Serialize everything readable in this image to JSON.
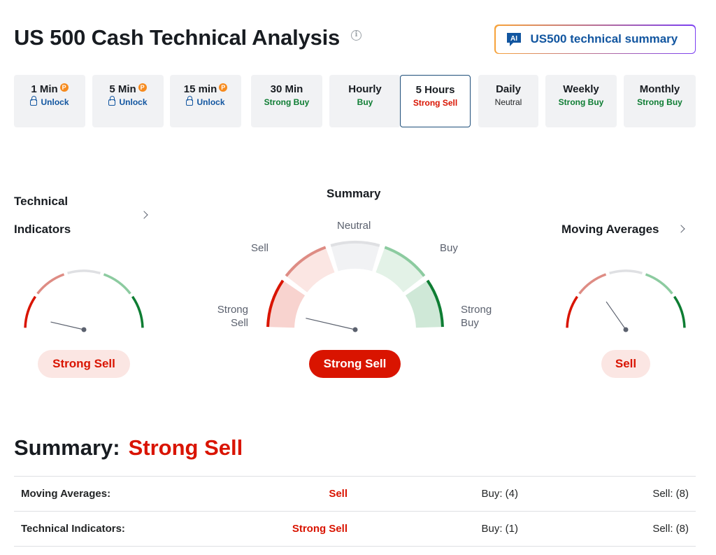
{
  "header": {
    "title": "US 500 Cash Technical Analysis",
    "ai_button_label": "US500 technical summary",
    "ai_icon_text": "AI"
  },
  "timeframes": [
    {
      "label": "1 Min",
      "pro": true,
      "signal": "Unlock",
      "locked": true
    },
    {
      "label": "5 Min",
      "pro": true,
      "signal": "Unlock",
      "locked": true
    },
    {
      "label": "15 min",
      "pro": true,
      "signal": "Unlock",
      "locked": true
    },
    {
      "label": "30 Min",
      "pro": false,
      "signal": "Strong Buy",
      "locked": false
    },
    {
      "label": "Hourly",
      "pro": false,
      "signal": "Buy",
      "locked": false
    },
    {
      "label": "5 Hours",
      "pro": false,
      "signal": "Strong Sell",
      "locked": false,
      "active": true
    },
    {
      "label": "Daily",
      "pro": false,
      "signal": "Neutral",
      "locked": false
    },
    {
      "label": "Weekly",
      "pro": false,
      "signal": "Strong Buy",
      "locked": false
    },
    {
      "label": "Monthly",
      "pro": false,
      "signal": "Strong Buy",
      "locked": false
    }
  ],
  "pro_badge": "P",
  "technical_indicators": {
    "title_line1": "Technical",
    "title_line2": "Indicators",
    "result": "Strong Sell",
    "needle_level": "strong-sell"
  },
  "summary_gauge": {
    "title": "Summary",
    "labels": {
      "strong_sell_1": "Strong",
      "strong_sell_2": "Sell",
      "sell": "Sell",
      "neutral": "Neutral",
      "buy": "Buy",
      "strong_buy_1": "Strong",
      "strong_buy_2": "Buy"
    },
    "result": "Strong Sell",
    "needle_level": "strong-sell"
  },
  "moving_averages": {
    "title": "Moving Averages",
    "result": "Sell",
    "needle_level": "sell"
  },
  "summary": {
    "heading": "Summary:",
    "value": "Strong Sell",
    "rows": [
      {
        "label": "Moving Averages:",
        "signal": "Sell",
        "buy": "Buy: (4)",
        "sell": "Sell: (8)"
      },
      {
        "label": "Technical Indicators:",
        "signal": "Strong Sell",
        "buy": "Buy: (1)",
        "sell": "Sell: (8)"
      }
    ]
  },
  "colors": {
    "strong_sell": "#d91400",
    "sell": "#de8c84",
    "neutral": "#dfe0e3",
    "buy": "#8ccba0",
    "strong_buy": "#0e7d33",
    "link_blue": "#1256a0"
  }
}
